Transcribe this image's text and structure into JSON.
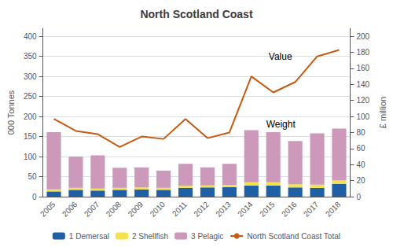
{
  "chart_data": {
    "type": "bar",
    "title": "North Scotland Coast",
    "categories": [
      "2005",
      "2006",
      "2007",
      "2008",
      "2009",
      "2010",
      "2011",
      "2012",
      "2013",
      "2014",
      "2015",
      "2016",
      "2017",
      "2018"
    ],
    "series": [
      {
        "name": "1 Demersal",
        "color": "#1f5fa6",
        "values": [
          13,
          17,
          15,
          17,
          18,
          17,
          22,
          23,
          24,
          28,
          28,
          23,
          22,
          32
        ]
      },
      {
        "name": "2 Shellfish",
        "color": "#f2e34c",
        "values": [
          5,
          5,
          5,
          5,
          5,
          5,
          5,
          5,
          5,
          8,
          8,
          8,
          8,
          8
        ]
      },
      {
        "name": "3 Pelagic",
        "color": "#cc99bb",
        "values": [
          143,
          78,
          83,
          50,
          50,
          43,
          55,
          45,
          53,
          130,
          125,
          108,
          128,
          130
        ]
      },
      {
        "name": "North Scotland Coast Total",
        "type": "line",
        "axis": "y2",
        "color": "#c55a11",
        "values": [
          97,
          82,
          78,
          62,
          75,
          72,
          97,
          73,
          80,
          150,
          130,
          143,
          175,
          183
        ]
      }
    ],
    "stacked": true,
    "ylabel": "000 Tonnes",
    "y2label": "£ million",
    "ylim": [
      0,
      420
    ],
    "yticks": [
      0,
      50,
      100,
      150,
      200,
      250,
      300,
      350,
      400
    ],
    "y2lim": [
      0,
      210
    ],
    "y2ticks": [
      0,
      20,
      40,
      60,
      80,
      100,
      120,
      140,
      160,
      180,
      200
    ],
    "grid": true,
    "legend": "bottom",
    "annotations": [
      "Value",
      "Weight"
    ]
  }
}
